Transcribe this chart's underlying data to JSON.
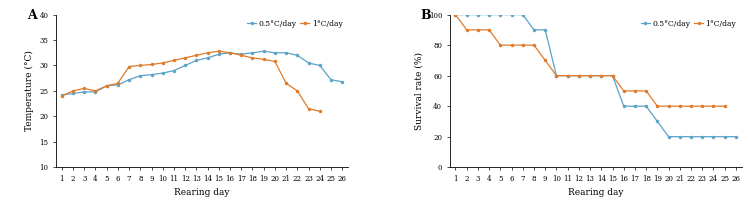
{
  "days": [
    1,
    2,
    3,
    4,
    5,
    6,
    7,
    8,
    9,
    10,
    11,
    12,
    13,
    14,
    15,
    16,
    17,
    18,
    19,
    20,
    21,
    22,
    23,
    24,
    25,
    26
  ],
  "temp_05": [
    24.2,
    24.5,
    24.8,
    24.8,
    26.0,
    26.2,
    27.2,
    28.0,
    28.2,
    28.5,
    29.0,
    30.0,
    31.0,
    31.5,
    32.2,
    32.5,
    32.2,
    32.5,
    32.8,
    32.5,
    32.5,
    32.0,
    30.5,
    30.0,
    27.2,
    26.8
  ],
  "temp_1": [
    24.0,
    25.0,
    25.5,
    25.0,
    26.0,
    26.5,
    29.8,
    30.0,
    30.2,
    30.5,
    31.0,
    31.5,
    32.0,
    32.5,
    32.8,
    32.5,
    32.0,
    31.5,
    31.2,
    30.8,
    26.5,
    25.0,
    21.5,
    21.0,
    null,
    null
  ],
  "surv_05": [
    100,
    100,
    100,
    100,
    100,
    100,
    100,
    90,
    90,
    60,
    60,
    60,
    60,
    60,
    60,
    40,
    40,
    40,
    30,
    20,
    20,
    20,
    20,
    20,
    20,
    20
  ],
  "surv_1": [
    100,
    90,
    90,
    90,
    80,
    80,
    80,
    80,
    70,
    60,
    60,
    60,
    60,
    60,
    60,
    50,
    50,
    50,
    40,
    40,
    40,
    40,
    40,
    40,
    40,
    null
  ],
  "color_05": "#5ba3c9",
  "color_1": "#e07b2a",
  "label_05": "0.5°C/day",
  "label_1": "1°C/day",
  "temp_ylim": [
    10,
    40
  ],
  "temp_yticks": [
    10,
    15,
    20,
    25,
    30,
    35,
    40
  ],
  "surv_ylim": [
    0,
    100
  ],
  "surv_yticks": [
    0,
    20,
    40,
    60,
    80,
    100
  ],
  "xlabel": "Rearing day",
  "ylabel_A": "Temperature (°C)",
  "ylabel_B": "Survival rate (%)",
  "panel_A": "A",
  "panel_B": "B",
  "tick_fontsize": 5.0,
  "label_fontsize": 6.5,
  "legend_fontsize": 5.5,
  "panel_fontsize": 9,
  "marker_size": 2.5,
  "line_width": 0.9
}
